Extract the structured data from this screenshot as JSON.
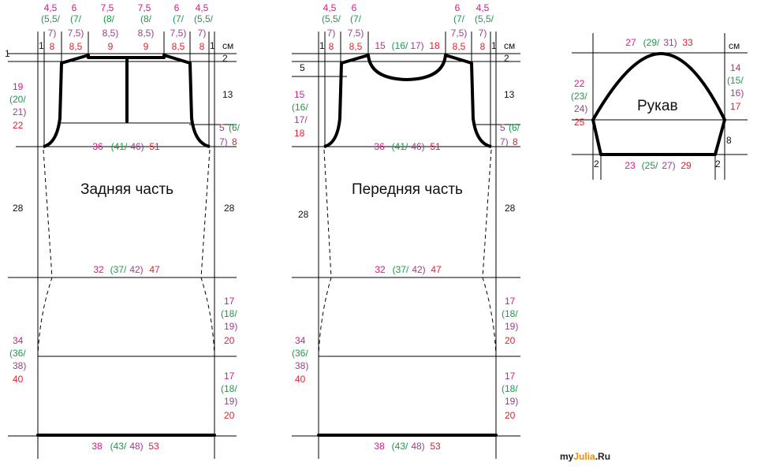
{
  "colors": {
    "size1": "#e0168a",
    "size2": "#1a9b48",
    "size3": "#9b3f8c",
    "size4": "#e4202e",
    "ink": "#111111",
    "logo_dark": "#231f20",
    "logo_orange": "#f18a00"
  },
  "unit": "см",
  "back": {
    "title": "Задняя часть",
    "top_left_1": "1",
    "margin_1": "1",
    "shoulder_top": {
      "a": "4,5",
      "b": "(5,5/",
      "c": "7)",
      "d": "8"
    },
    "shoulder_top2": {
      "a": "6",
      "b": "(7/",
      "c": "7,5)",
      "d": "8,5"
    },
    "neck": {
      "a": "7,5",
      "b": "(8/",
      "c": "8,5)",
      "d": "9"
    },
    "armhole_left": {
      "a": "19",
      "b": "(20/",
      "c": "21)",
      "d": "22"
    },
    "neck_depth": "2",
    "armhole_height": "13",
    "armhole_bind": {
      "a": "5",
      "b": "(6/",
      "c": "7)",
      "d": "8"
    },
    "chest_width": {
      "a": "36",
      "b": "(41/",
      "c": "46)",
      "d": "51"
    },
    "upper_len": "28",
    "waist_width": {
      "a": "32",
      "b": "(37/",
      "c": "42)",
      "d": "47"
    },
    "lower_left": {
      "a": "34",
      "b": "(36/",
      "c": "38)",
      "d": "40"
    },
    "seg": {
      "a": "17",
      "b": "(18/",
      "c": "19)",
      "d": "20"
    },
    "hem_width": {
      "a": "38",
      "b": "(43/",
      "c": "48)",
      "d": "53"
    }
  },
  "front": {
    "title": "Передняя часть",
    "margin_1": "1",
    "neck_drop": "5",
    "neck_width": {
      "a": "15",
      "b": "(16/",
      "c": "17)",
      "d": "18"
    },
    "armhole_left": {
      "a": "15",
      "b": "(16/",
      "c": "17/",
      "d": "18"
    },
    "neck_depth": "2",
    "armhole_height": "13",
    "upper_len_left": "28",
    "upper_len_right": "28"
  },
  "sleeve": {
    "title": "Рукав",
    "cap_top": {
      "a": "27",
      "b": "(29/",
      "c": "31)",
      "d": "33"
    },
    "cap_left": {
      "a": "22",
      "b": "(23/",
      "c": "24)",
      "d": "25"
    },
    "cap_right": {
      "a": "14",
      "b": "(15/",
      "c": "16)",
      "d": "17"
    },
    "side": "8",
    "edge": "2",
    "cuff": {
      "a": "23",
      "b": "(25/",
      "c": "27)",
      "d": "29"
    }
  },
  "logo": {
    "part1": "my",
    "part2": "Julia",
    "part3": ".Ru"
  }
}
